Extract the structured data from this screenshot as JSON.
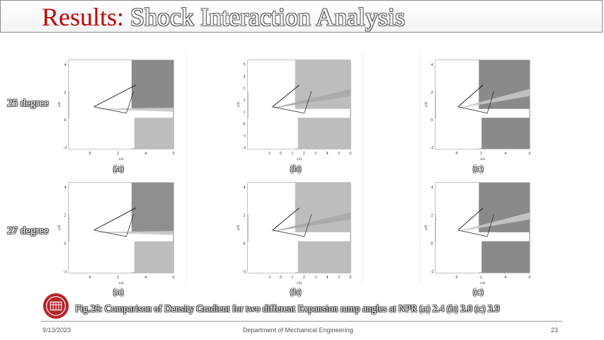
{
  "header": {
    "title_lead": "Results:",
    "title_rest": "Shock Interaction Analysis"
  },
  "rows": [
    {
      "label": "25 degree"
    },
    {
      "label": "27 degree"
    }
  ],
  "axes": {
    "x_label": "x/h",
    "x_sub": "t",
    "y_label": "y/h",
    "y_sub": "t",
    "panels_a_c_yticks": [
      "4",
      "2",
      "0",
      "-2"
    ],
    "panel_b_top_yticks": [
      "5",
      "4",
      "3",
      "2",
      "1",
      "0",
      "-1",
      "-2"
    ],
    "panel_b_bottom_yticks": [
      "4",
      "2",
      "0",
      "-2"
    ],
    "xticks_a": [
      "0",
      "2",
      "4",
      "6"
    ],
    "xticks_b": [
      "-1",
      "0",
      "1",
      "2",
      "3",
      "4",
      "5",
      "6"
    ],
    "xticks_c": [
      "0",
      "2",
      "4",
      "6"
    ]
  },
  "panel_labels": [
    "(a)",
    "(b)",
    "(c)"
  ],
  "figure_caption": "Fig.26: Comparison of Density Gradient for two different Expansion ramp angles at NPR (a) 2.4 (b) 3.0 (c) 3.9",
  "footer": {
    "date": "9/13/2023",
    "department": "Department of Mechanical Engineering",
    "page": "23"
  },
  "colors": {
    "title_red": "#c00000",
    "field_dark": "#8c8c8c",
    "field_light": "#b9b9b9"
  }
}
